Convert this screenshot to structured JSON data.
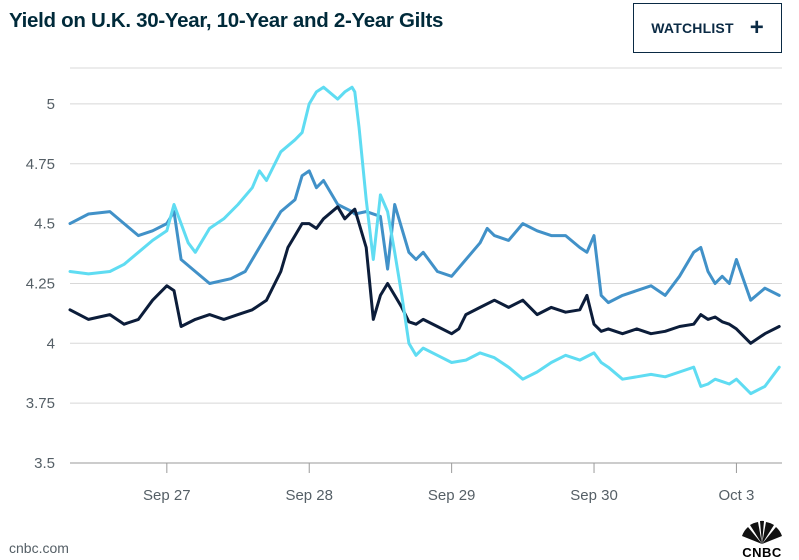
{
  "header": {
    "title": "Yield on U.K. 30-Year, 10-Year and 2-Year Gilts",
    "watchlist_label": "WATCHLIST",
    "watchlist_icon": "plus-icon"
  },
  "footer": {
    "source": "cnbc.com",
    "logo_text": "CNBC"
  },
  "chart_data": {
    "type": "line",
    "title": "Yield on U.K. 30-Year, 10-Year and 2-Year Gilts",
    "xlabel": "",
    "ylabel": "",
    "xlim": [
      -0.68,
      4.32
    ],
    "ylim": [
      3.5,
      5.15
    ],
    "y_ticks": [
      3.5,
      3.75,
      4,
      4.25,
      4.5,
      4.75,
      5
    ],
    "y_tick_labels": [
      "3.5",
      "3.75",
      "4",
      "4.25",
      "4.5",
      "4.75",
      "5"
    ],
    "x_ticks": [
      0,
      1,
      2,
      3,
      4
    ],
    "x_tick_labels": [
      "Sep 27",
      "Sep 28",
      "Sep 29",
      "Sep 30",
      "Oct 3"
    ],
    "grid": "horizontal",
    "legend": "none",
    "series": [
      {
        "name": "30-Year",
        "color": "#4191c8",
        "x": [
          -0.68,
          -0.55,
          -0.4,
          -0.3,
          -0.2,
          -0.1,
          0,
          0.05,
          0.1,
          0.2,
          0.3,
          0.45,
          0.55,
          0.65,
          0.8,
          0.9,
          0.95,
          1.0,
          1.05,
          1.1,
          1.2,
          1.3,
          1.32,
          1.4,
          1.5,
          1.55,
          1.6,
          1.65,
          1.7,
          1.75,
          1.8,
          1.9,
          2.0,
          2.1,
          2.2,
          2.25,
          2.3,
          2.4,
          2.5,
          2.6,
          2.7,
          2.8,
          2.9,
          2.95,
          3.0,
          3.05,
          3.1,
          3.2,
          3.3,
          3.4,
          3.5,
          3.6,
          3.7,
          3.75,
          3.8,
          3.85,
          3.9,
          3.95,
          4.0,
          4.1,
          4.2,
          4.3
        ],
        "y": [
          4.5,
          4.54,
          4.55,
          4.5,
          4.45,
          4.47,
          4.5,
          4.55,
          4.35,
          4.3,
          4.25,
          4.27,
          4.3,
          4.4,
          4.55,
          4.6,
          4.7,
          4.72,
          4.65,
          4.68,
          4.58,
          4.55,
          4.54,
          4.55,
          4.53,
          4.31,
          4.58,
          4.48,
          4.38,
          4.35,
          4.38,
          4.3,
          4.28,
          4.35,
          4.42,
          4.48,
          4.45,
          4.43,
          4.5,
          4.47,
          4.45,
          4.45,
          4.4,
          4.38,
          4.45,
          4.2,
          4.17,
          4.2,
          4.22,
          4.24,
          4.2,
          4.28,
          4.38,
          4.4,
          4.3,
          4.25,
          4.28,
          4.25,
          4.35,
          4.18,
          4.23,
          4.2
        ]
      },
      {
        "name": "10-Year",
        "color": "#0c1d3a",
        "x": [
          -0.68,
          -0.55,
          -0.4,
          -0.3,
          -0.2,
          -0.1,
          0,
          0.05,
          0.1,
          0.2,
          0.3,
          0.4,
          0.5,
          0.6,
          0.7,
          0.8,
          0.85,
          0.9,
          0.95,
          1.0,
          1.05,
          1.1,
          1.2,
          1.25,
          1.3,
          1.32,
          1.4,
          1.45,
          1.5,
          1.55,
          1.6,
          1.65,
          1.7,
          1.75,
          1.8,
          1.9,
          2.0,
          2.05,
          2.1,
          2.2,
          2.3,
          2.4,
          2.5,
          2.6,
          2.7,
          2.8,
          2.9,
          2.95,
          3.0,
          3.05,
          3.1,
          3.2,
          3.3,
          3.4,
          3.5,
          3.6,
          3.7,
          3.75,
          3.8,
          3.85,
          3.9,
          3.95,
          4.0,
          4.1,
          4.2,
          4.3
        ],
        "y": [
          4.14,
          4.1,
          4.12,
          4.08,
          4.1,
          4.18,
          4.24,
          4.22,
          4.07,
          4.1,
          4.12,
          4.1,
          4.12,
          4.14,
          4.18,
          4.3,
          4.4,
          4.45,
          4.5,
          4.5,
          4.48,
          4.52,
          4.57,
          4.52,
          4.55,
          4.56,
          4.4,
          4.1,
          4.2,
          4.25,
          4.2,
          4.15,
          4.09,
          4.08,
          4.1,
          4.07,
          4.04,
          4.06,
          4.12,
          4.15,
          4.18,
          4.15,
          4.18,
          4.12,
          4.15,
          4.13,
          4.14,
          4.2,
          4.08,
          4.05,
          4.06,
          4.04,
          4.06,
          4.04,
          4.05,
          4.07,
          4.08,
          4.12,
          4.1,
          4.11,
          4.09,
          4.08,
          4.06,
          4.0,
          4.04,
          4.07
        ]
      },
      {
        "name": "2-Year",
        "color": "#5fdcf2",
        "x": [
          -0.68,
          -0.55,
          -0.4,
          -0.3,
          -0.2,
          -0.1,
          0,
          0.05,
          0.1,
          0.15,
          0.2,
          0.3,
          0.4,
          0.5,
          0.6,
          0.65,
          0.7,
          0.8,
          0.9,
          0.95,
          1.0,
          1.05,
          1.1,
          1.2,
          1.25,
          1.3,
          1.32,
          1.35,
          1.4,
          1.45,
          1.5,
          1.55,
          1.6,
          1.65,
          1.7,
          1.75,
          1.8,
          1.9,
          2.0,
          2.1,
          2.2,
          2.3,
          2.4,
          2.5,
          2.6,
          2.7,
          2.8,
          2.9,
          3.0,
          3.05,
          3.1,
          3.2,
          3.3,
          3.4,
          3.5,
          3.6,
          3.7,
          3.75,
          3.8,
          3.85,
          3.9,
          3.95,
          4.0,
          4.1,
          4.2,
          4.3
        ],
        "y": [
          4.3,
          4.29,
          4.3,
          4.33,
          4.38,
          4.43,
          4.47,
          4.58,
          4.5,
          4.42,
          4.38,
          4.48,
          4.52,
          4.58,
          4.65,
          4.72,
          4.68,
          4.8,
          4.85,
          4.88,
          5.0,
          5.05,
          5.07,
          5.02,
          5.05,
          5.07,
          5.05,
          4.9,
          4.6,
          4.35,
          4.62,
          4.55,
          4.38,
          4.2,
          4.0,
          3.95,
          3.98,
          3.95,
          3.92,
          3.93,
          3.96,
          3.94,
          3.9,
          3.85,
          3.88,
          3.92,
          3.95,
          3.93,
          3.96,
          3.92,
          3.9,
          3.85,
          3.86,
          3.87,
          3.86,
          3.88,
          3.9,
          3.82,
          3.83,
          3.85,
          3.84,
          3.83,
          3.85,
          3.79,
          3.82,
          3.9
        ]
      }
    ]
  }
}
